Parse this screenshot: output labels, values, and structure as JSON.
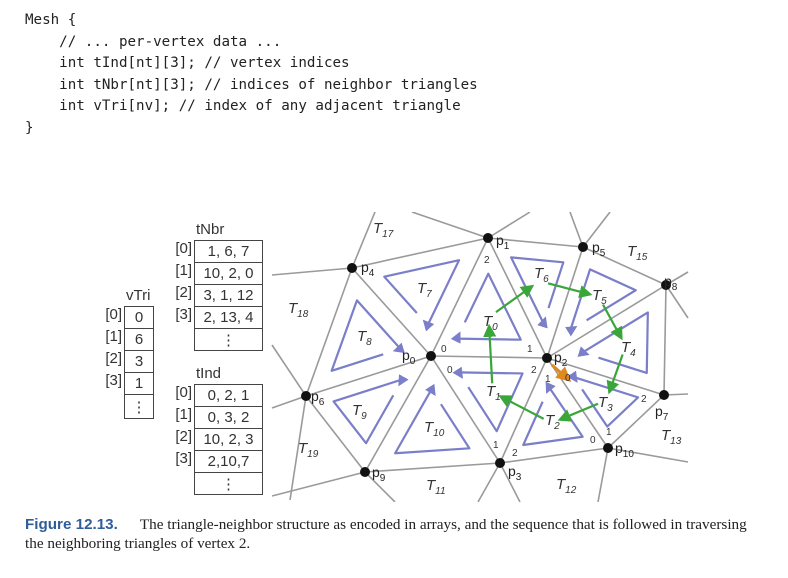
{
  "code": {
    "lines": [
      "Mesh {",
      "    // ... per-vertex data ...",
      "    int tInd[nt][3]; // vertex indices",
      "    int tNbr[nt][3]; // indices of neighbor triangles",
      "    int vTri[nv]; // index of any adjacent triangle",
      "}"
    ]
  },
  "tables": {
    "tNbr": {
      "title": "tNbr",
      "indices": [
        "[0]",
        "[1]",
        "[2]",
        "[3]"
      ],
      "rows": [
        "1, 6, 7",
        "10, 2, 0",
        "3, 1, 12",
        "2, 13, 4"
      ],
      "more": "⋮"
    },
    "vTri": {
      "title": "vTri",
      "indices": [
        "[0]",
        "[1]",
        "[2]",
        "[3]"
      ],
      "rows": [
        "0",
        "6",
        "3",
        "1"
      ],
      "more": "⋮"
    },
    "tInd": {
      "title": "tInd",
      "indices": [
        "[0]",
        "[1]",
        "[2]",
        "[3]"
      ],
      "rows": [
        "0, 2, 1",
        "0, 3, 2",
        "10, 2, 3",
        "2,10,7"
      ],
      "more": "⋮"
    }
  },
  "diagram": {
    "vertices": [
      {
        "base": "p",
        "sub": "0"
      },
      {
        "base": "p",
        "sub": "1"
      },
      {
        "base": "p",
        "sub": "2"
      },
      {
        "base": "p",
        "sub": "3"
      },
      {
        "base": "p",
        "sub": "4"
      },
      {
        "base": "p",
        "sub": "5"
      },
      {
        "base": "p",
        "sub": "6"
      },
      {
        "base": "p",
        "sub": "7"
      },
      {
        "base": "p",
        "sub": "8"
      },
      {
        "base": "p",
        "sub": "9"
      },
      {
        "base": "p",
        "sub": "10"
      }
    ],
    "triangles": [
      {
        "base": "T",
        "sub": "0"
      },
      {
        "base": "T",
        "sub": "1"
      },
      {
        "base": "T",
        "sub": "2"
      },
      {
        "base": "T",
        "sub": "3"
      },
      {
        "base": "T",
        "sub": "4"
      },
      {
        "base": "T",
        "sub": "5"
      },
      {
        "base": "T",
        "sub": "6"
      },
      {
        "base": "T",
        "sub": "7"
      },
      {
        "base": "T",
        "sub": "8"
      },
      {
        "base": "T",
        "sub": "9"
      },
      {
        "base": "T",
        "sub": "10"
      },
      {
        "base": "T",
        "sub": "11"
      },
      {
        "base": "T",
        "sub": "12"
      },
      {
        "base": "T",
        "sub": "13"
      },
      {
        "base": "T",
        "sub": "15"
      },
      {
        "base": "T",
        "sub": "17"
      },
      {
        "base": "T",
        "sub": "18"
      },
      {
        "base": "T",
        "sub": "19"
      }
    ],
    "corner_indices": [
      "2",
      "0",
      "0",
      "1",
      "2",
      "1",
      "0",
      "2",
      "1",
      "2",
      "0",
      "1"
    ],
    "colors": {
      "edge": "#9a9a9a",
      "loop": "#7b7ec8",
      "arrow": "#3aa63a",
      "highlight": "#e08a1e",
      "vertex": "#111111"
    }
  },
  "caption": {
    "figure": "Figure 12.13.",
    "text": "The triangle-neighbor structure as encoded in arrays, and the sequence that is followed in traversing the neighboring triangles of vertex 2."
  }
}
